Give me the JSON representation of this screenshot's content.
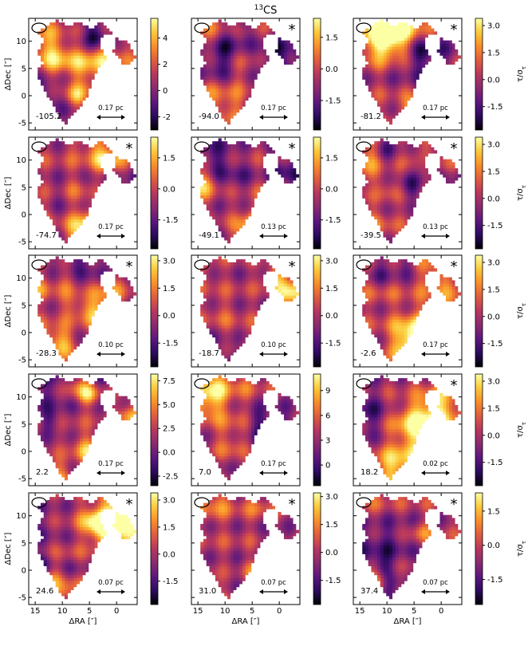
{
  "title_base": "CS",
  "title_sup": "13",
  "xlabel": "ΔRA [″]",
  "ylabel": "ΔDec [″]",
  "cbar_label": "τ/σ",
  "cbar_label_sub": "τ",
  "colormap": [
    "#000004",
    "#2c0b5e",
    "#5d177e",
    "#8a2a6f",
    "#b7375f",
    "#e05c3f",
    "#f98e2a",
    "#fbc93a",
    "#fcffa4"
  ],
  "x_ticks": [
    "15",
    "10",
    "5",
    "0"
  ],
  "y_ticks": [
    "10",
    "5",
    "0",
    "-5"
  ],
  "chart_data": [
    {
      "type": "heatmap",
      "velocity": "-105.2",
      "scale": "0.17 pc",
      "asterisk": false,
      "cbar_ticks": [
        "4",
        "2",
        "0",
        "-2"
      ],
      "cbar_range": [
        -3.0,
        5.5
      ],
      "seed": 11
    },
    {
      "type": "heatmap",
      "velocity": "-94.0",
      "scale": "0.17 pc",
      "asterisk": true,
      "cbar_ticks": [
        "1.5",
        "0.0",
        "-1.5"
      ],
      "cbar_range": [
        -2.9,
        2.4
      ],
      "seed": 23
    },
    {
      "type": "heatmap",
      "velocity": "-81.2",
      "scale": "0.17 pc",
      "asterisk": true,
      "cbar_ticks": [
        "3.0",
        "1.5",
        "0.0",
        "-1.5"
      ],
      "cbar_range": [
        -2.8,
        3.4
      ],
      "seed": 37
    },
    {
      "type": "heatmap",
      "velocity": "-74.7",
      "scale": "0.17 pc",
      "asterisk": true,
      "cbar_ticks": [
        "1.5",
        "0.0",
        "-1.5"
      ],
      "cbar_range": [
        -2.9,
        2.5
      ],
      "seed": 41
    },
    {
      "type": "heatmap",
      "velocity": "-49.1",
      "scale": "0.13 pc",
      "asterisk": true,
      "cbar_ticks": [
        "1.5",
        "0.0",
        "-1.5"
      ],
      "cbar_range": [
        -2.9,
        2.5
      ],
      "seed": 53
    },
    {
      "type": "heatmap",
      "velocity": "-39.5",
      "scale": "0.13 pc",
      "asterisk": true,
      "cbar_ticks": [
        "3.0",
        "1.5",
        "0.0",
        "-1.5"
      ],
      "cbar_range": [
        -2.8,
        3.4
      ],
      "seed": 67
    },
    {
      "type": "heatmap",
      "velocity": "-28.3",
      "scale": "0.10 pc",
      "asterisk": true,
      "cbar_ticks": [
        "3.0",
        "1.5",
        "0.0",
        "-1.5"
      ],
      "cbar_range": [
        -2.8,
        3.3
      ],
      "seed": 71
    },
    {
      "type": "heatmap",
      "velocity": "-18.7",
      "scale": "0.10 pc",
      "asterisk": true,
      "cbar_ticks": [
        "3.0",
        "1.5",
        "0.0",
        "-1.5"
      ],
      "cbar_range": [
        -2.8,
        3.3
      ],
      "seed": 83
    },
    {
      "type": "heatmap",
      "velocity": "-2.6",
      "scale": "0.17 pc",
      "asterisk": true,
      "cbar_ticks": [
        "3.0",
        "1.5",
        "0.0",
        "-1.5"
      ],
      "cbar_range": [
        -2.8,
        3.4
      ],
      "seed": 97
    },
    {
      "type": "heatmap",
      "velocity": "2.2",
      "scale": "0.17 pc",
      "asterisk": false,
      "cbar_ticks": [
        "7.5",
        "5.0",
        "2.5",
        "0.0",
        "-2.5"
      ],
      "cbar_range": [
        -3.5,
        8.2
      ],
      "seed": 101
    },
    {
      "type": "heatmap",
      "velocity": "7.0",
      "scale": "0.17 pc",
      "asterisk": false,
      "cbar_ticks": [
        "9",
        "6",
        "3",
        "0"
      ],
      "cbar_range": [
        -2.5,
        11.0
      ],
      "seed": 113
    },
    {
      "type": "heatmap",
      "velocity": "18.2",
      "scale": "0.02 pc",
      "asterisk": true,
      "cbar_ticks": [
        "3.0",
        "1.5",
        "0.0",
        "-1.5"
      ],
      "cbar_range": [
        -2.8,
        3.4
      ],
      "seed": 127
    },
    {
      "type": "heatmap",
      "velocity": "24.6",
      "scale": "0.07 pc",
      "asterisk": true,
      "cbar_ticks": [
        "3.0",
        "1.5",
        "0.0",
        "-1.5"
      ],
      "cbar_range": [
        -2.8,
        3.4
      ],
      "seed": 131
    },
    {
      "type": "heatmap",
      "velocity": "31.0",
      "scale": "0.07 pc",
      "asterisk": true,
      "cbar_ticks": [
        "3.0",
        "1.5",
        "0.0",
        "-1.5"
      ],
      "cbar_range": [
        -2.8,
        3.2
      ],
      "seed": 139
    },
    {
      "type": "heatmap",
      "velocity": "37.4",
      "scale": "0.07 pc",
      "asterisk": true,
      "cbar_ticks": [
        "1.5",
        "0.0",
        "-1.5"
      ],
      "cbar_range": [
        -2.6,
        2.3
      ],
      "seed": 149
    }
  ]
}
